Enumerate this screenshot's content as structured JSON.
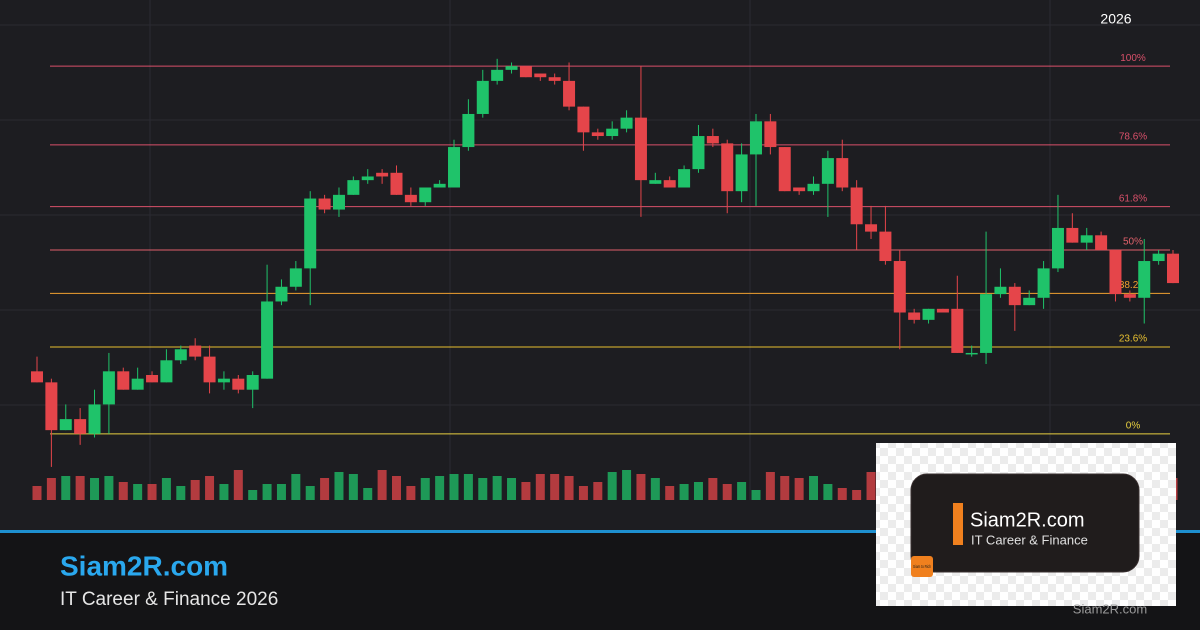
{
  "chart_data": {
    "type": "candlestick",
    "year_label": "2026",
    "ylim": [
      -18,
      118
    ],
    "up_color": "#1fc36a",
    "down_color": "#e5454a",
    "open": [
      17,
      14,
      1,
      4,
      0,
      8,
      17,
      12,
      16,
      14,
      20,
      24,
      21,
      14,
      15,
      12,
      15,
      36,
      40,
      45,
      64,
      61,
      65,
      69,
      71,
      71,
      65,
      63,
      67,
      67,
      78,
      87,
      96,
      99,
      100,
      98,
      97,
      96,
      89,
      82,
      81,
      83,
      86,
      68,
      69,
      67,
      72,
      81,
      79,
      66,
      76,
      85,
      78,
      67,
      66,
      68,
      75,
      67,
      57,
      55,
      47,
      33,
      31,
      34,
      34,
      22,
      22,
      38,
      40,
      35,
      37,
      45,
      56,
      52,
      54,
      50,
      38,
      37,
      47,
      49
    ],
    "close": [
      14,
      1,
      4,
      0,
      8,
      17,
      12,
      15,
      14,
      20,
      23,
      21,
      14,
      15,
      12,
      16,
      36,
      40,
      45,
      64,
      61,
      65,
      69,
      70,
      70,
      65,
      63,
      67,
      68,
      78,
      87,
      96,
      99,
      100,
      97,
      97,
      96,
      89,
      82,
      81,
      83,
      86,
      69,
      69,
      67,
      72,
      81,
      79,
      66,
      76,
      85,
      78,
      66,
      66,
      68,
      75,
      67,
      57,
      55,
      47,
      33,
      31,
      34,
      33,
      22,
      22,
      38,
      40,
      35,
      37,
      45,
      56,
      52,
      54,
      50,
      38,
      37,
      47,
      49,
      41
    ],
    "high": [
      21,
      15,
      8,
      7,
      12,
      22,
      18,
      18,
      17,
      23,
      24,
      26,
      24,
      17,
      16,
      17,
      46,
      42,
      47,
      66,
      65,
      67,
      70,
      72,
      72,
      73,
      67,
      67,
      69,
      80,
      91,
      99,
      102,
      101,
      100,
      98,
      98,
      101,
      89,
      83,
      85,
      88,
      100,
      71,
      70,
      73,
      84,
      83,
      80,
      79,
      87,
      87,
      78,
      67,
      70,
      77,
      80,
      69,
      62,
      62,
      50,
      34,
      34,
      34,
      43,
      24,
      55,
      45,
      41,
      39,
      47,
      65,
      60,
      56,
      55,
      50,
      39,
      53,
      50,
      50
    ],
    "low": [
      14,
      -9,
      1,
      -3,
      -1,
      0,
      12,
      12,
      14,
      14,
      19,
      20,
      11,
      12,
      11,
      7,
      15,
      35,
      39,
      35,
      60,
      59,
      65,
      68,
      68,
      65,
      62,
      62,
      67,
      67,
      77,
      86,
      95,
      98,
      97,
      96,
      95,
      88,
      77,
      80,
      80,
      82,
      59,
      68,
      67,
      67,
      71,
      78,
      60,
      63,
      62,
      76,
      66,
      65,
      65,
      59,
      66,
      50,
      53,
      46,
      23,
      30,
      30,
      33,
      22,
      21,
      19,
      37,
      28,
      35,
      34,
      44,
      52,
      50,
      50,
      36,
      36,
      30,
      46,
      41
    ],
    "volume": [
      14,
      22,
      24,
      24,
      22,
      24,
      18,
      16,
      16,
      22,
      14,
      20,
      24,
      16,
      30,
      10,
      16,
      16,
      26,
      14,
      22,
      28,
      26,
      12,
      30,
      24,
      14,
      22,
      24,
      26,
      26,
      22,
      24,
      22,
      18,
      26,
      26,
      24,
      14,
      18,
      28,
      30,
      26,
      22,
      14,
      16,
      18,
      22,
      16,
      18,
      10,
      28,
      24,
      22,
      24,
      16,
      12,
      10,
      28,
      22,
      18,
      24,
      26,
      14,
      20,
      22,
      18,
      24,
      26,
      16,
      20,
      24,
      22,
      18,
      14,
      26,
      20,
      24,
      22,
      22
    ],
    "fib_levels": [
      {
        "value": 100,
        "label": "100%",
        "color": "#d9506a"
      },
      {
        "value": 78.6,
        "label": "78.6%",
        "color": "#d9506a"
      },
      {
        "value": 61.8,
        "label": "61.8%",
        "color": "#d9506a"
      },
      {
        "value": 50,
        "label": "50%",
        "color": "#e0606a"
      },
      {
        "value": 38.2,
        "label": "38.2%",
        "color": "#f0a030"
      },
      {
        "value": 23.6,
        "label": "23.6%",
        "color": "#e8c030"
      },
      {
        "value": 0,
        "label": "0%",
        "color": "#e8d040"
      }
    ]
  },
  "footer": {
    "title": "Siam2R.com",
    "subtitle": "IT Career & Finance 2026",
    "watermark": "Siam2R.com"
  },
  "card": {
    "title": "Siam2R.com",
    "subtitle": "IT Career & Finance",
    "logo": "Siam to Rich"
  }
}
